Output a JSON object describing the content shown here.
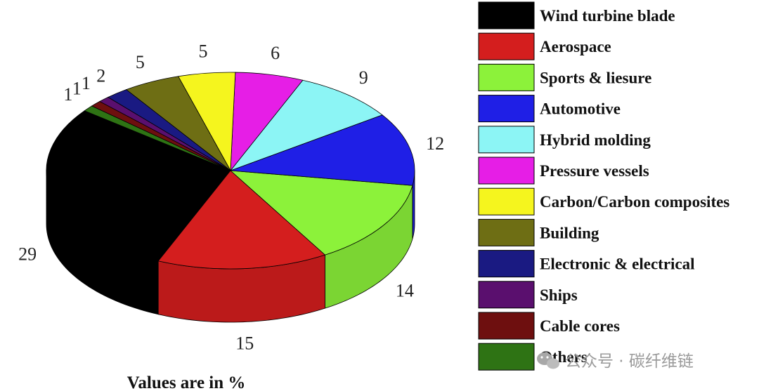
{
  "chart_data": {
    "type": "pie",
    "style": "3d",
    "categories": [
      "Wind turbine blade",
      "Aerospace",
      "Sports & liesure",
      "Automotive",
      "Hybrid molding",
      "Pressure vessels",
      "Carbon/Carbon composites",
      "Building",
      "Electronic & electrical",
      "Ships",
      "Cable cores",
      "Others"
    ],
    "values": [
      29,
      15,
      14,
      12,
      9,
      6,
      5,
      5,
      2,
      1,
      1,
      1
    ],
    "colors": [
      "#000000",
      "#d41e1e",
      "#8cf23a",
      "#1f1fe6",
      "#8cf5f5",
      "#e61ee6",
      "#f5f51e",
      "#6e6e14",
      "#1a1a82",
      "#5a0f6e",
      "#6e0f0f",
      "#2e7314"
    ],
    "legend_position": "right",
    "caption": "Values are in %"
  },
  "watermark": {
    "icon": "wechat-icon",
    "text": "公众号 · 碳纤维链"
  }
}
